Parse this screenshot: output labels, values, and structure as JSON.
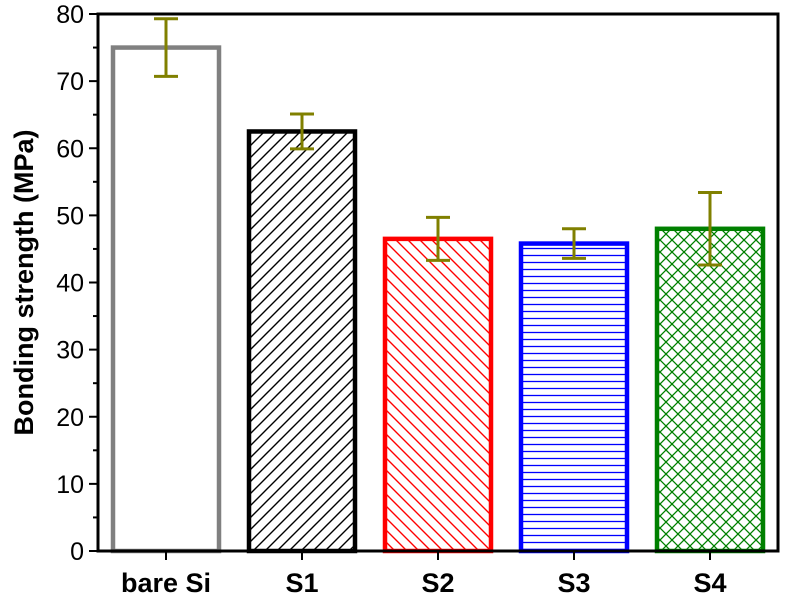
{
  "chart_data": {
    "type": "bar",
    "categories": [
      "bare Si",
      "S1",
      "S2",
      "S3",
      "S4"
    ],
    "values": [
      75,
      62.5,
      46.5,
      45.8,
      48
    ],
    "error": [
      4.3,
      2.6,
      3.2,
      2.2,
      5.4
    ],
    "ylabel": "Bonding strength (MPa)",
    "xlabel": "",
    "ylim": [
      0,
      80
    ],
    "yticks": [
      0,
      10,
      20,
      30,
      40,
      50,
      60,
      70,
      80
    ],
    "grid": false,
    "bar_colors": [
      "#808080",
      "#000000",
      "#ff0000",
      "#0000ff",
      "#008000"
    ],
    "bar_patterns": [
      "none",
      "diagonal-up",
      "diagonal-down",
      "horizontal",
      "crosshatch"
    ],
    "error_bar_color": "#808000"
  }
}
